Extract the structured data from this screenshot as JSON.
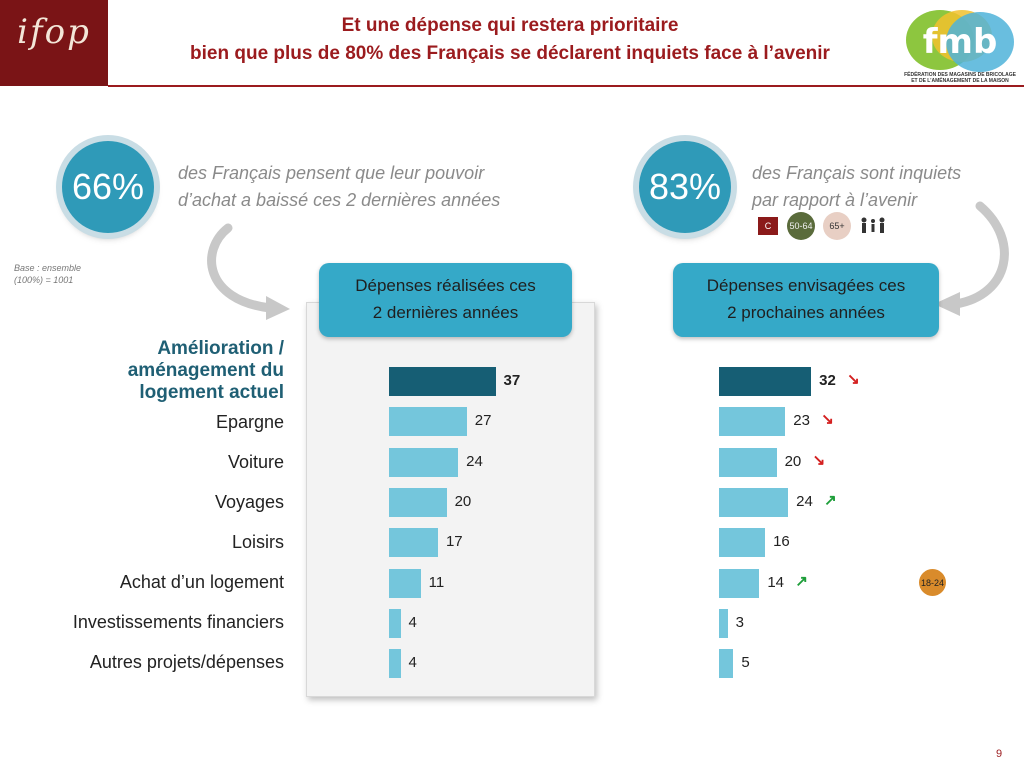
{
  "logo": "ifop",
  "title_line1": "Et une dépense qui restera prioritaire",
  "title_line2": "bien que plus de 80% des Français se déclarent inquiets face à l’avenir",
  "partner_logo": {
    "text": "fmb",
    "subtitle_line1": "FÉDÉRATION DES MAGASINS DE BRICOLAGE",
    "subtitle_line2": "ET DE L’AMÉNAGEMENT DE LA MAISON"
  },
  "stat_left": {
    "value": "66%",
    "text_line1": "des Français pensent que leur pouvoir",
    "text_line2": "d’achat a baissé ces 2 dernières années"
  },
  "stat_right": {
    "value": "83%",
    "text_line1": "des Français sont inquiets",
    "text_line2": "par rapport à l’avenir"
  },
  "badges": {
    "c": "C",
    "age1": "50-64",
    "age2": "65+",
    "age3": "18-24"
  },
  "base_note_line1": "Base : ensemble",
  "base_note_line2": "(100%) = 1001",
  "panel_left": {
    "line1": "Dépenses réalisées ces",
    "line2": "2 dernières années"
  },
  "panel_right": {
    "line1": "Dépenses envisagées ces",
    "line2": "2 prochaines années"
  },
  "page_number": "9",
  "colors": {
    "highlight": "#165e74",
    "bar": "#74c6dc",
    "down": "#d42020",
    "up": "#1e9e3a",
    "brand": "#9b1b1e"
  },
  "chart_data": {
    "type": "bar",
    "orientation": "horizontal",
    "categories": [
      "Amélioration / aménagement du logement actuel",
      "Epargne",
      "Voiture",
      "Voyages",
      "Loisirs",
      "Achat d’un logement",
      "Investissements financiers",
      "Autres projets/dépenses"
    ],
    "series": [
      {
        "name": "Dépenses réalisées ces 2 dernières années",
        "values": [
          37,
          27,
          24,
          20,
          17,
          11,
          4,
          4
        ]
      },
      {
        "name": "Dépenses envisagées ces 2 prochaines années",
        "values": [
          32,
          23,
          20,
          24,
          16,
          14,
          3,
          5
        ],
        "trend": [
          "down",
          "down",
          "down",
          "up",
          "",
          "up",
          "",
          ""
        ]
      }
    ]
  }
}
